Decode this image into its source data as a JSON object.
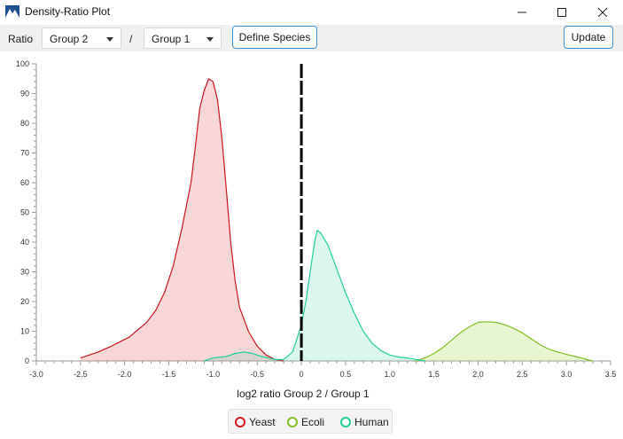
{
  "window": {
    "title": "Density-Ratio Plot",
    "minimize_icon": "minimize-icon",
    "maximize_icon": "maximize-icon",
    "close_icon": "close-icon",
    "app_icon": "mountain-app-icon"
  },
  "toolbar": {
    "ratio_label": "Ratio",
    "numerator": "Group 2",
    "divider": "/",
    "denominator": "Group 1",
    "define_species_label": "Define Species",
    "update_label": "Update"
  },
  "colors": {
    "yeast": "#c8161d",
    "ecoli": "#7fbf1f",
    "human": "#1fcf9a",
    "accent": "#3a8fd0"
  },
  "chart_data": {
    "type": "area",
    "title": "",
    "xlabel": "log2 ratio Group 2 / Group 1",
    "ylabel": "",
    "xlim": [
      -3.0,
      3.5
    ],
    "ylim": [
      0,
      100
    ],
    "x_ticks": [
      "-3.0",
      "-2.5",
      "-2.0",
      "-1.5",
      "-1.0",
      "-0.5",
      "0",
      "0.5",
      "1.0",
      "1.5",
      "2.0",
      "2.5",
      "3.0",
      "3.5"
    ],
    "y_ticks": [
      "0",
      "10",
      "20",
      "30",
      "40",
      "50",
      "60",
      "70",
      "80",
      "90",
      "100"
    ],
    "grid": false,
    "legend_position": "bottom",
    "reference_line_x": 0,
    "series": [
      {
        "name": "Yeast",
        "points": [
          [
            -2.5,
            1
          ],
          [
            -2.3,
            3
          ],
          [
            -2.15,
            5
          ],
          [
            -2.05,
            6.5
          ],
          [
            -1.95,
            8
          ],
          [
            -1.85,
            10.5
          ],
          [
            -1.75,
            13
          ],
          [
            -1.65,
            17
          ],
          [
            -1.55,
            23
          ],
          [
            -1.45,
            32
          ],
          [
            -1.35,
            45
          ],
          [
            -1.25,
            60
          ],
          [
            -1.2,
            72
          ],
          [
            -1.15,
            85
          ],
          [
            -1.1,
            91
          ],
          [
            -1.05,
            95
          ],
          [
            -1.0,
            94
          ],
          [
            -0.95,
            88
          ],
          [
            -0.9,
            75
          ],
          [
            -0.85,
            58
          ],
          [
            -0.8,
            40
          ],
          [
            -0.75,
            27
          ],
          [
            -0.7,
            18
          ],
          [
            -0.6,
            10
          ],
          [
            -0.5,
            5
          ],
          [
            -0.4,
            2
          ],
          [
            -0.3,
            0.5
          ],
          [
            -0.2,
            0
          ]
        ]
      },
      {
        "name": "Ecoli",
        "points": [
          [
            1.3,
            0
          ],
          [
            1.4,
            1
          ],
          [
            1.5,
            2.5
          ],
          [
            1.6,
            4.5
          ],
          [
            1.7,
            7
          ],
          [
            1.8,
            9.5
          ],
          [
            1.9,
            11.5
          ],
          [
            2.0,
            13
          ],
          [
            2.1,
            13.2
          ],
          [
            2.2,
            13
          ],
          [
            2.3,
            12.2
          ],
          [
            2.4,
            11
          ],
          [
            2.5,
            9.5
          ],
          [
            2.6,
            7.5
          ],
          [
            2.7,
            5.5
          ],
          [
            2.8,
            4
          ],
          [
            2.9,
            3
          ],
          [
            3.0,
            2.2
          ],
          [
            3.1,
            1.5
          ],
          [
            3.2,
            0.8
          ],
          [
            3.25,
            0.3
          ],
          [
            3.3,
            0
          ]
        ]
      },
      {
        "name": "Human",
        "points": [
          [
            -1.1,
            0
          ],
          [
            -1.0,
            1
          ],
          [
            -0.85,
            1.5
          ],
          [
            -0.75,
            2.5
          ],
          [
            -0.65,
            3
          ],
          [
            -0.55,
            2.5
          ],
          [
            -0.45,
            1.5
          ],
          [
            -0.3,
            0.5
          ],
          [
            -0.2,
            0.5
          ],
          [
            -0.1,
            3
          ],
          [
            0.0,
            12
          ],
          [
            0.05,
            20
          ],
          [
            0.1,
            30
          ],
          [
            0.15,
            40
          ],
          [
            0.18,
            44
          ],
          [
            0.22,
            43
          ],
          [
            0.3,
            39
          ],
          [
            0.4,
            31
          ],
          [
            0.5,
            23
          ],
          [
            0.6,
            16
          ],
          [
            0.7,
            10
          ],
          [
            0.8,
            6
          ],
          [
            0.9,
            3.5
          ],
          [
            1.0,
            2
          ],
          [
            1.1,
            1.3
          ],
          [
            1.2,
            1
          ],
          [
            1.3,
            0.5
          ],
          [
            1.4,
            0
          ]
        ]
      }
    ]
  }
}
